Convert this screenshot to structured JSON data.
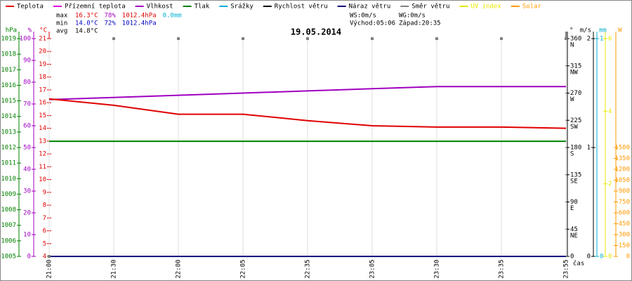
{
  "chart_data": {
    "type": "line",
    "title": "19.05.2014",
    "x_label": "čas",
    "categories": [
      "21:00",
      "21:30",
      "22:00",
      "22:05",
      "22:35",
      "23:05",
      "23:30",
      "23:35",
      "23:55"
    ],
    "legend": "top",
    "stats": [
      {
        "label": "max",
        "items": [
          {
            "text": "16.3°C",
            "color": "#e00000"
          },
          {
            "text": "78%",
            "color": "#a000c0"
          },
          {
            "text": "1012.4hPa",
            "color": "#e00000"
          },
          {
            "text": "0.0mm",
            "color": "#00b0d0"
          }
        ]
      },
      {
        "label": "min",
        "items": [
          {
            "text": "14.0°C",
            "color": "#0000c0"
          },
          {
            "text": "72%",
            "color": "#0000c0"
          },
          {
            "text": "1012.4hPa",
            "color": "#0000c0"
          }
        ]
      },
      {
        "label": "avg",
        "items": [
          {
            "text": "14.8°C",
            "color": "#000000"
          }
        ]
      }
    ],
    "wind_info": [
      "WS:0m/s",
      "WG:0m/s"
    ],
    "sun_info": [
      "Východ:05:06",
      "Západ:20:35"
    ],
    "axes": [
      {
        "id": "press",
        "unit": "hPa",
        "color": "#008000",
        "lim": [
          1005,
          1019
        ],
        "ticks": [
          1005,
          1006,
          1007,
          1008,
          1009,
          1010,
          1011,
          1012,
          1013,
          1014,
          1015,
          1016,
          1017,
          1018,
          1019
        ]
      },
      {
        "id": "hum",
        "unit": "%",
        "color": "#a000c0",
        "lim": [
          0,
          100
        ],
        "ticks": [
          0,
          10,
          20,
          30,
          40,
          50,
          60,
          70,
          80,
          90,
          100
        ]
      },
      {
        "id": "temp",
        "unit": "°C",
        "color": "#e00000",
        "lim": [
          4,
          21
        ],
        "ticks": [
          4,
          5,
          6,
          7,
          8,
          9,
          10,
          11,
          12,
          13,
          14,
          15,
          16,
          17,
          18,
          19,
          20,
          21
        ]
      },
      {
        "id": "dir",
        "unit": "°",
        "color": "#000000",
        "lim": [
          0,
          360
        ],
        "ticks": [
          0,
          45,
          90,
          135,
          180,
          225,
          270,
          315,
          360
        ],
        "notes": [
          "NE",
          "E",
          "SE",
          "S",
          "SW",
          "W",
          "NW",
          "N"
        ]
      },
      {
        "id": "wind",
        "unit": "m/s",
        "color": "#000000",
        "lim": [
          0,
          2
        ],
        "ticks": [
          0,
          1,
          2
        ]
      },
      {
        "id": "rain",
        "unit": "mm",
        "color": "#00b0d0",
        "lim": [
          0,
          1
        ],
        "ticks": [
          0,
          1
        ]
      },
      {
        "id": "uv",
        "color": "#e8e800",
        "lim": [
          0,
          6
        ],
        "ticks": [
          0,
          2,
          4,
          6
        ]
      },
      {
        "id": "solar",
        "unit": "W",
        "color": "#ff9900",
        "lim": [
          0,
          3000
        ],
        "ticks": [
          0,
          150,
          300,
          450,
          600,
          750,
          900,
          1050,
          1200,
          1350,
          1500
        ]
      }
    ],
    "series": [
      {
        "name": "Teplota",
        "color": "#e00000",
        "axis": "temp",
        "values": [
          16.3,
          15.8,
          15.1,
          15.1,
          14.6,
          14.2,
          14.1,
          14.1,
          14.0
        ]
      },
      {
        "name": "Přízemní teplota",
        "color": "#e000e0",
        "axis": "temp",
        "values": [
          null,
          null,
          null,
          null,
          null,
          null,
          null,
          null,
          null
        ]
      },
      {
        "name": "Vlhkost",
        "color": "#a000c0",
        "axis": "hum",
        "values": [
          72,
          73,
          74,
          75,
          76,
          77,
          78,
          78,
          78
        ]
      },
      {
        "name": "Tlak",
        "color": "#008000",
        "axis": "press",
        "values": [
          1012.4,
          1012.4,
          1012.4,
          1012.4,
          1012.4,
          1012.4,
          1012.4,
          1012.4,
          1012.4
        ]
      },
      {
        "name": "Srážky",
        "color": "#00b0d0",
        "axis": "rain",
        "values": [
          0,
          0,
          0,
          0,
          0,
          0,
          0,
          0,
          0
        ]
      },
      {
        "name": "Rychlost větru",
        "color": "#000000",
        "axis": "wind",
        "values": [
          0,
          0,
          0,
          0,
          0,
          0,
          0,
          0,
          0
        ]
      },
      {
        "name": "Náraz větru",
        "color": "#000080",
        "axis": "wind",
        "values": [
          0,
          0,
          0,
          0,
          0,
          0,
          0,
          0,
          0
        ]
      },
      {
        "name": "Směr větru",
        "color": "#808080",
        "axis": "dir",
        "points": true,
        "values": [
          0,
          360,
          360,
          360,
          360,
          360,
          360,
          360,
          360
        ]
      },
      {
        "name": "UV index",
        "color": "#e8e800",
        "axis": "uv",
        "values": [
          0,
          0,
          0,
          0,
          0,
          0,
          0,
          0,
          0
        ]
      },
      {
        "name": "Solar",
        "color": "#ff9900",
        "axis": "solar",
        "values": [
          0,
          0,
          0,
          0,
          0,
          0,
          0,
          0,
          0
        ]
      }
    ]
  }
}
